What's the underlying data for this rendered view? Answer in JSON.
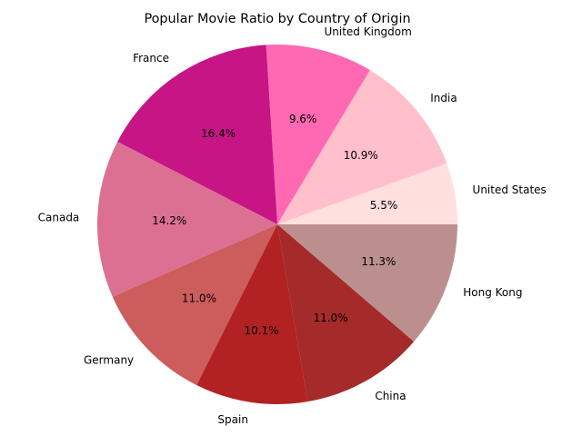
{
  "chart_data": {
    "type": "pie",
    "title": "Popular Movie Ratio by Country of Origin",
    "start_angle_deg": 0,
    "direction": "counterclockwise",
    "slices": [
      {
        "label": "United States",
        "value": 5.5,
        "pct_text": "5.5%",
        "color": "#FFE0DE"
      },
      {
        "label": "India",
        "value": 10.9,
        "pct_text": "10.9%",
        "color": "#FFC0CB"
      },
      {
        "label": "United Kingdom",
        "value": 9.6,
        "pct_text": "9.6%",
        "color": "#FF69B4"
      },
      {
        "label": "France",
        "value": 16.4,
        "pct_text": "16.4%",
        "color": "#C71585"
      },
      {
        "label": "Canada",
        "value": 14.2,
        "pct_text": "14.2%",
        "color": "#DB7093"
      },
      {
        "label": "Germany",
        "value": 11.0,
        "pct_text": "11.0%",
        "color": "#CD5C5C"
      },
      {
        "label": "Spain",
        "value": 10.1,
        "pct_text": "10.1%",
        "color": "#B22222"
      },
      {
        "label": "China",
        "value": 11.0,
        "pct_text": "11.0%",
        "color": "#A52A2A"
      },
      {
        "label": "Hong Kong",
        "value": 11.3,
        "pct_text": "11.3%",
        "color": "#BC8F8F"
      }
    ]
  }
}
